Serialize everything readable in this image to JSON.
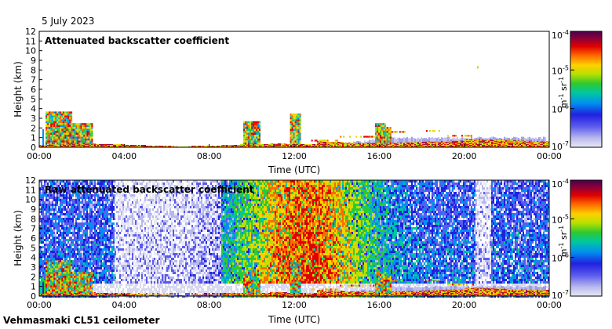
{
  "header": {
    "date": "5 July 2023"
  },
  "footer": {
    "instrument": "Vehmasmaki CL51 ceilometer"
  },
  "colors": {
    "colormap": [
      "#e8e8f6",
      "#b8b8ee",
      "#5a5aee",
      "#2020e0",
      "#0090f0",
      "#00c8a0",
      "#30c830",
      "#b8e000",
      "#ffd000",
      "#ff6a00",
      "#e00000",
      "#8a003a",
      "#4a004a"
    ]
  },
  "chart_data": [
    {
      "type": "heatmap",
      "title": "Attenuated backscatter coefficient",
      "xlabel": "Time (UTC)",
      "ylabel": "Height (km)",
      "x_ticks": [
        "00:00",
        "04:00",
        "08:00",
        "12:00",
        "16:00",
        "20:00",
        "00:00"
      ],
      "y_ticks": [
        0,
        1,
        2,
        3,
        4,
        5,
        6,
        7,
        8,
        9,
        10,
        11,
        12
      ],
      "ylim": [
        0,
        12
      ],
      "xlim_hours": [
        0,
        24
      ],
      "colorbar": {
        "scale": "log",
        "range": [
          1e-07,
          0.0001
        ],
        "tick_exponents": [
          "-4",
          "-5",
          "-6",
          "-7"
        ],
        "label": "m",
        "label_exp": "-1",
        "label_mid": " sr",
        "label_exp2": "-1"
      }
    },
    {
      "type": "heatmap",
      "title": "Raw attenuated backscatter coefficient",
      "xlabel": "Time (UTC)",
      "ylabel": "Height (km)",
      "x_ticks": [
        "00:00",
        "04:00",
        "08:00",
        "12:00",
        "16:00",
        "20:00",
        "00:00"
      ],
      "y_ticks": [
        0,
        1,
        2,
        3,
        4,
        5,
        6,
        7,
        8,
        9,
        10,
        11,
        12
      ],
      "ylim": [
        0,
        12
      ],
      "xlim_hours": [
        0,
        24
      ],
      "colorbar": {
        "scale": "log",
        "range": [
          1e-07,
          0.0001
        ],
        "tick_exponents": [
          "-4",
          "-5",
          "-6",
          "-7"
        ],
        "label": "m",
        "label_exp": "-1",
        "label_mid": " sr",
        "label_exp2": "-1"
      }
    }
  ]
}
